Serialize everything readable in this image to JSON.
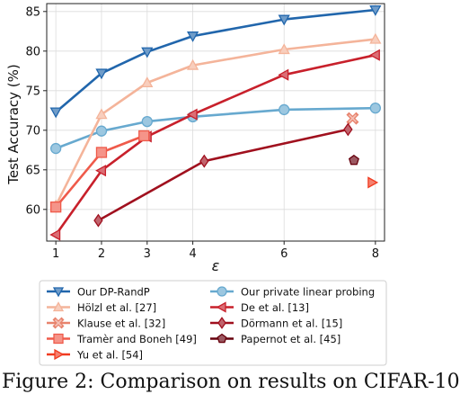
{
  "chart_data": {
    "type": "line",
    "xlabel": "ε",
    "ylabel": "Test Accuracy (%)",
    "xlim": [
      0.8,
      8.2
    ],
    "ylim": [
      56,
      86
    ],
    "xticks": [
      1,
      2,
      3,
      4,
      6,
      8
    ],
    "yticks": [
      60,
      65,
      70,
      75,
      80,
      85
    ],
    "grid": true,
    "legend_placement": "below",
    "series": [
      {
        "name": "Our DP-RandP",
        "color": "#2166ac",
        "marker": "triangle-down",
        "x": [
          1,
          2,
          3,
          4,
          6,
          8
        ],
        "y": [
          72.3,
          77.2,
          79.9,
          81.9,
          84.0,
          85.2
        ]
      },
      {
        "name": "Our private linear probing",
        "color": "#67a9cf",
        "marker": "circle",
        "x": [
          1,
          2,
          3,
          4,
          6,
          8
        ],
        "y": [
          67.7,
          69.9,
          71.1,
          71.7,
          72.6,
          72.8
        ]
      },
      {
        "name": "Hölzl et al. [27]",
        "color": "#f4b49a",
        "marker": "triangle-up",
        "x": [
          1,
          2,
          3,
          4,
          6,
          8
        ],
        "y": [
          60.5,
          72.0,
          76.0,
          78.2,
          80.2,
          81.5
        ]
      },
      {
        "name": "De et al. [13]",
        "color": "#c8202b",
        "marker": "triangle-left",
        "x": [
          1,
          2,
          3,
          4,
          6,
          8
        ],
        "y": [
          56.8,
          64.9,
          69.2,
          72.0,
          77.0,
          79.5
        ]
      },
      {
        "name": "Klause et al. [32]",
        "color": "#e8836d",
        "marker": "x-thick",
        "x": [
          7.5
        ],
        "y": [
          71.5
        ]
      },
      {
        "name": "Dörmann et al. [15]",
        "color": "#a0101e",
        "marker": "diamond",
        "x": [
          1.93,
          4.25,
          7.4
        ],
        "y": [
          58.6,
          66.1,
          70.1
        ]
      },
      {
        "name": "Tramèr and Boneh [49]",
        "color": "#ef5a4a",
        "marker": "square",
        "x": [
          1,
          2,
          2.93
        ],
        "y": [
          60.3,
          67.2,
          69.3
        ]
      },
      {
        "name": "Papernot et al. [45]",
        "color": "#67000d",
        "marker": "pentagon",
        "x": [
          7.53
        ],
        "y": [
          66.2
        ]
      },
      {
        "name": "Yu et al. [54]",
        "color": "#f03b20",
        "marker": "triangle-right",
        "x": [
          7.93
        ],
        "y": [
          63.4
        ]
      }
    ]
  },
  "caption": "Figure 2: Comparison on results on CIFAR-10"
}
